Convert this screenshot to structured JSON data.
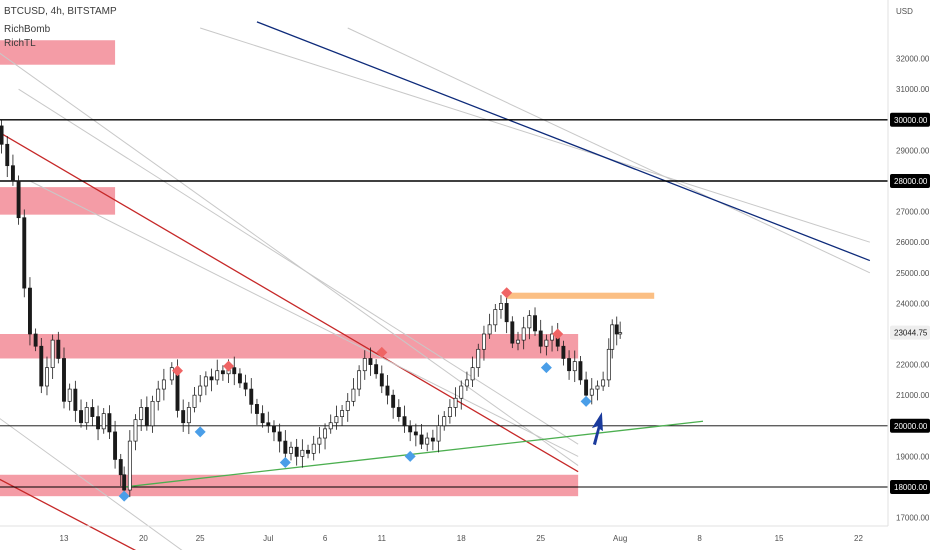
{
  "header": {
    "title": "BTCUSD, 4h, BITSTAMP",
    "indicators": [
      "RichBomb",
      "RichTL"
    ]
  },
  "price_axis": {
    "currency": "USD",
    "ticks": [
      "32000.00",
      "31000.00",
      "29000.00",
      "27000.00",
      "26000.00",
      "25000.00",
      "24000.00",
      "22000.00",
      "21000.00",
      "19000.00",
      "17000.00"
    ],
    "tick_values": [
      32000,
      31000,
      29000,
      27000,
      26000,
      25000,
      24000,
      22000,
      21000,
      19000,
      17000
    ],
    "level_labels": [
      "30000.00",
      "28000.00",
      "20000.00",
      "18000.00"
    ],
    "level_values": [
      30000,
      28000,
      20000,
      18000
    ],
    "current_price_label": "23044.75",
    "current_price": 23044.75
  },
  "time_axis": {
    "labels": [
      "13",
      "20",
      "25",
      "Jul",
      "6",
      "11",
      "18",
      "25",
      "Aug",
      "8",
      "15",
      "22"
    ],
    "label_index": [
      0,
      7,
      12,
      18,
      23,
      28,
      35,
      42,
      49,
      56,
      63,
      70
    ]
  },
  "colors": {
    "zone_fill": "#f28b96",
    "target_fill": "#fbbf84",
    "level_line": "#000000",
    "channel_red": "#c62828",
    "channel_gray": "#c8c8c8",
    "channel_blue": "#0d2a7a",
    "trend_green": "#4caf50",
    "candle_up": "#ffffff",
    "candle_down": "#1a1a1a",
    "marker_top": "#ef6464",
    "marker_bottom": "#4a9ee8",
    "arrow": "#1a3a9c"
  },
  "chart_data": {
    "type": "candlestick",
    "title": "BTCUSD, 4h, BITSTAMP",
    "symbol": "BTCUSD",
    "interval": "4h",
    "exchange": "BITSTAMP",
    "ylabel": "USD",
    "ylim": [
      16400,
      33000
    ],
    "x_day_range": [
      -8.5,
      76.5
    ],
    "series": [
      {
        "name": "BTCUSD",
        "close": [
          [
            -8.4,
            30400
          ],
          [
            -8.0,
            31500
          ],
          [
            -7.6,
            31000
          ],
          [
            -7.0,
            30600
          ],
          [
            -6.5,
            30300
          ],
          [
            -6.0,
            29800
          ],
          [
            -5.5,
            29200
          ],
          [
            -5.0,
            28500
          ],
          [
            -4.5,
            28000
          ],
          [
            -4.0,
            26800
          ],
          [
            -3.5,
            24500
          ],
          [
            -3.0,
            23000
          ],
          [
            -2.5,
            22600
          ],
          [
            -2.0,
            21300
          ],
          [
            -1.5,
            21900
          ],
          [
            -1.0,
            22800
          ],
          [
            -0.5,
            22200
          ],
          [
            0.0,
            20800
          ],
          [
            0.5,
            21200
          ],
          [
            1.0,
            20500
          ],
          [
            1.5,
            20100
          ],
          [
            2.0,
            20600
          ],
          [
            2.5,
            20300
          ],
          [
            3.0,
            19900
          ],
          [
            3.5,
            20400
          ],
          [
            4.0,
            19800
          ],
          [
            4.5,
            18900
          ],
          [
            5.0,
            18400
          ],
          [
            5.3,
            17900
          ],
          [
            5.8,
            19500
          ],
          [
            6.3,
            20200
          ],
          [
            6.8,
            20600
          ],
          [
            7.3,
            20000
          ],
          [
            7.8,
            20800
          ],
          [
            8.3,
            21200
          ],
          [
            8.8,
            21500
          ],
          [
            9.5,
            21900
          ],
          [
            10.0,
            20500
          ],
          [
            10.5,
            20100
          ],
          [
            11.0,
            20600
          ],
          [
            11.5,
            21000
          ],
          [
            12.0,
            21300
          ],
          [
            12.5,
            21600
          ],
          [
            13.0,
            21500
          ],
          [
            13.5,
            21800
          ],
          [
            14.0,
            21700
          ],
          [
            14.5,
            21900
          ],
          [
            15.0,
            21700
          ],
          [
            15.5,
            21400
          ],
          [
            16.0,
            21200
          ],
          [
            16.5,
            20700
          ],
          [
            17.0,
            20400
          ],
          [
            17.5,
            20100
          ],
          [
            18.0,
            20000
          ],
          [
            18.5,
            19800
          ],
          [
            19.0,
            19500
          ],
          [
            19.5,
            19100
          ],
          [
            20.0,
            19300
          ],
          [
            20.5,
            19000
          ],
          [
            21.0,
            19200
          ],
          [
            21.5,
            19100
          ],
          [
            22.0,
            19400
          ],
          [
            22.5,
            19600
          ],
          [
            23.0,
            19900
          ],
          [
            23.5,
            20100
          ],
          [
            24.0,
            20300
          ],
          [
            24.5,
            20500
          ],
          [
            25.0,
            20800
          ],
          [
            25.5,
            21200
          ],
          [
            26.0,
            21800
          ],
          [
            26.5,
            22200
          ],
          [
            27.0,
            22000
          ],
          [
            27.5,
            21700
          ],
          [
            28.0,
            21300
          ],
          [
            28.5,
            21000
          ],
          [
            29.0,
            20600
          ],
          [
            29.5,
            20300
          ],
          [
            30.0,
            20000
          ],
          [
            30.5,
            19800
          ],
          [
            31.0,
            19700
          ],
          [
            31.5,
            19400
          ],
          [
            32.0,
            19600
          ],
          [
            32.5,
            19500
          ],
          [
            33.0,
            20000
          ],
          [
            33.5,
            20300
          ],
          [
            34.0,
            20600
          ],
          [
            34.5,
            20900
          ],
          [
            35.0,
            21300
          ],
          [
            35.5,
            21500
          ],
          [
            36.0,
            21900
          ],
          [
            36.5,
            22500
          ],
          [
            37.0,
            23000
          ],
          [
            37.5,
            23300
          ],
          [
            38.0,
            23800
          ],
          [
            38.5,
            24000
          ],
          [
            39.0,
            23400
          ],
          [
            39.5,
            22700
          ],
          [
            40.0,
            22800
          ],
          [
            40.5,
            23200
          ],
          [
            41.0,
            23600
          ],
          [
            41.5,
            23100
          ],
          [
            42.0,
            22600
          ],
          [
            42.5,
            22800
          ],
          [
            43.0,
            23000
          ],
          [
            43.5,
            22600
          ],
          [
            44.0,
            22200
          ],
          [
            44.5,
            21800
          ],
          [
            45.0,
            22100
          ],
          [
            45.5,
            21500
          ],
          [
            46.0,
            21000
          ],
          [
            46.5,
            21200
          ],
          [
            47.0,
            21300
          ],
          [
            47.5,
            21500
          ],
          [
            48.0,
            22500
          ],
          [
            48.3,
            23300
          ],
          [
            48.7,
            23000
          ],
          [
            49.0,
            23044.75
          ]
        ]
      }
    ],
    "horizontal_levels": [
      30000,
      28000,
      20000,
      18000
    ],
    "zones": [
      {
        "from_day": -8.5,
        "to_day": 4.5,
        "low": 31800,
        "high": 32600
      },
      {
        "from_day": -8.5,
        "to_day": 4.5,
        "low": 26900,
        "high": 27800
      },
      {
        "from_day": -8.5,
        "to_day": 45.3,
        "low": 22200,
        "high": 23000
      },
      {
        "from_day": -8.5,
        "to_day": 45.3,
        "low": 17700,
        "high": 18400
      }
    ],
    "target_zone": {
      "from_day": 39.0,
      "to_day": 52.0,
      "low": 24150,
      "high": 24350
    },
    "trendline": {
      "from": [
        5.3,
        18000
      ],
      "to": [
        56.3,
        20150
      ]
    },
    "top_markers": [
      [
        -8.0,
        31600
      ],
      [
        10.0,
        21800
      ],
      [
        14.5,
        21950
      ],
      [
        28.0,
        22400
      ],
      [
        39.0,
        24350
      ],
      [
        43.5,
        23000
      ]
    ],
    "bottom_markers": [
      [
        -8.5,
        29300
      ],
      [
        5.3,
        17700
      ],
      [
        12.0,
        19800
      ],
      [
        19.5,
        18800
      ],
      [
        30.5,
        19000
      ],
      [
        42.5,
        21900
      ],
      [
        46.0,
        20800
      ]
    ],
    "channels": [
      {
        "color": "red",
        "from": [
          -8.5,
          30200
        ],
        "to": [
          45.3,
          18500
        ]
      },
      {
        "color": "red",
        "from": [
          -8.5,
          18800
        ],
        "to": [
          8.5,
          15500
        ]
      },
      {
        "color": "gray",
        "from": [
          -4.0,
          31000
        ],
        "to": [
          45.3,
          19400
        ]
      },
      {
        "color": "gray",
        "from": [
          -6.5,
          32400
        ],
        "to": [
          45.3,
          18700
        ]
      },
      {
        "color": "gray",
        "from": [
          -3.0,
          28000
        ],
        "to": [
          45.3,
          19000
        ]
      },
      {
        "color": "gray",
        "from": [
          -8.5,
          21000
        ],
        "to": [
          12.0,
          15500
        ]
      },
      {
        "color": "gray",
        "from": [
          12.0,
          33000
        ],
        "to": [
          71.0,
          26000
        ]
      },
      {
        "color": "gray",
        "from": [
          25.0,
          33000
        ],
        "to": [
          71.0,
          25000
        ]
      },
      {
        "color": "blue",
        "from": [
          17.0,
          33200
        ],
        "to": [
          71.0,
          25400
        ]
      }
    ]
  }
}
